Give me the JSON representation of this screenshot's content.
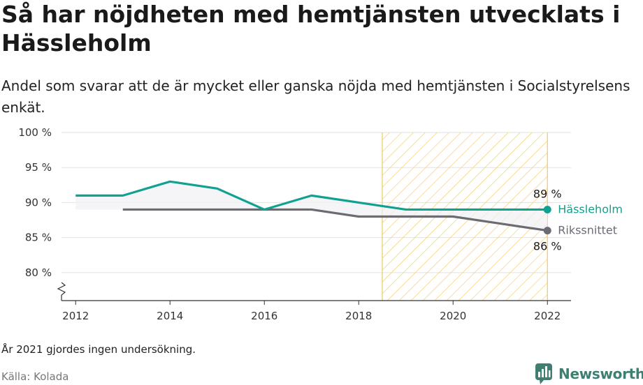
{
  "title": "Så har nöjdheten med hemtjänsten utvecklats i Hässleholm",
  "subtitle": "Andel som svarar att de är mycket eller ganska nöjda med hemtjänsten i Socialstyrelsens enkät.",
  "note": "År 2021 gjordes ingen undersökning.",
  "source": "Källa: Kolada",
  "brand": "Newsworthy",
  "colors": {
    "hassleholm": "#10a192",
    "riket": "#6b6b73",
    "highlight_fill": "#f7e6b3",
    "highlight_stroke": "#f0c75e",
    "brand": "#3f7f72"
  },
  "chart_data": {
    "type": "line",
    "ylim": [
      76,
      100
    ],
    "y_ticks": [
      80,
      85,
      90,
      95,
      100
    ],
    "y_tick_labels": [
      "80 %",
      "85 %",
      "90 %",
      "95 %",
      "100 %"
    ],
    "xlim": [
      2011.7,
      2022.5
    ],
    "x_ticks": [
      2012,
      2014,
      2016,
      2018,
      2020,
      2022
    ],
    "x_tick_labels": [
      "2012",
      "2014",
      "2016",
      "2018",
      "2020",
      "2022"
    ],
    "highlight_range": [
      2018.5,
      2022
    ],
    "axis_break": true,
    "series": [
      {
        "name": "Hässleholm",
        "x": [
          2012,
          2013,
          2014,
          2015,
          2016,
          2017,
          2018,
          2019,
          2020,
          2021,
          2022
        ],
        "y": [
          91,
          91,
          93,
          92,
          89,
          91,
          90,
          89,
          89,
          89,
          89
        ],
        "end_label": "89 %"
      },
      {
        "name": "Rikssnittet",
        "x": [
          2013,
          2014,
          2015,
          2016,
          2017,
          2018,
          2019,
          2020,
          2021,
          2022
        ],
        "y": [
          89,
          89,
          89,
          89,
          89,
          88,
          88,
          88,
          87,
          86
        ],
        "end_label": "86 %"
      }
    ]
  }
}
